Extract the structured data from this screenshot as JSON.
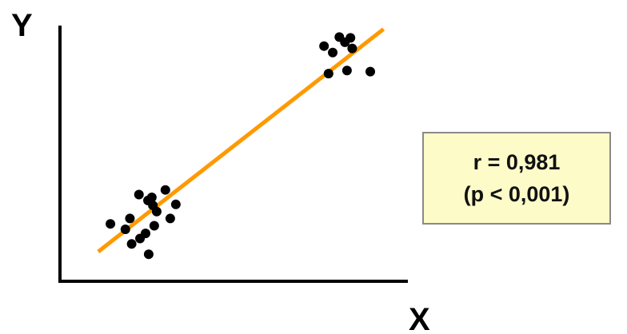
{
  "chart_data": {
    "type": "scatter",
    "title": "",
    "xlabel": "X",
    "ylabel": "Y",
    "xlim": [
      0,
      100
    ],
    "ylim": [
      0,
      100
    ],
    "grid": false,
    "show_ticks": false,
    "colors": {
      "points": "#000000",
      "fit_line": "#ff9900",
      "axes": "#000000",
      "box_fill": "#fdfbc8"
    },
    "points": [
      {
        "x": 14.5,
        "y": 22.3
      },
      {
        "x": 18.8,
        "y": 20.2
      },
      {
        "x": 20.1,
        "y": 24.4
      },
      {
        "x": 20.6,
        "y": 14.5
      },
      {
        "x": 23.0,
        "y": 16.6
      },
      {
        "x": 24.6,
        "y": 18.6
      },
      {
        "x": 25.5,
        "y": 10.5
      },
      {
        "x": 27.1,
        "y": 21.6
      },
      {
        "x": 22.7,
        "y": 33.7
      },
      {
        "x": 25.3,
        "y": 31.4
      },
      {
        "x": 26.4,
        "y": 32.6
      },
      {
        "x": 26.7,
        "y": 29.5
      },
      {
        "x": 27.8,
        "y": 27.1
      },
      {
        "x": 30.3,
        "y": 35.5
      },
      {
        "x": 31.7,
        "y": 24.4
      },
      {
        "x": 33.3,
        "y": 29.9
      },
      {
        "x": 75.9,
        "y": 91.4
      },
      {
        "x": 77.2,
        "y": 80.7
      },
      {
        "x": 78.4,
        "y": 88.9
      },
      {
        "x": 80.3,
        "y": 94.9
      },
      {
        "x": 81.9,
        "y": 92.9
      },
      {
        "x": 82.5,
        "y": 81.9
      },
      {
        "x": 83.5,
        "y": 94.6
      },
      {
        "x": 84.0,
        "y": 90.5
      },
      {
        "x": 89.2,
        "y": 81.5
      }
    ],
    "fit_line": {
      "x": [
        11,
        93
      ],
      "y": [
        11.5,
        98
      ]
    },
    "annotations": [
      "r = 0,981",
      "(p < 0,001)"
    ]
  }
}
